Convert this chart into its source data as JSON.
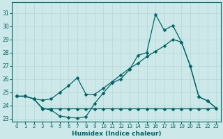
{
  "xlabel": "Humidex (Indice chaleur)",
  "bg_color": "#cce8e8",
  "line_color": "#006666",
  "grid_color": "#b8d4d4",
  "ylim": [
    22.8,
    31.8
  ],
  "yticks": [
    23,
    24,
    25,
    26,
    27,
    28,
    29,
    30,
    31
  ],
  "xticks": [
    0,
    1,
    2,
    3,
    4,
    5,
    6,
    7,
    8,
    9,
    10,
    11,
    12,
    13,
    14,
    15,
    16,
    17,
    18,
    19,
    20,
    21,
    22,
    23
  ],
  "line_jagged_x": [
    0,
    1,
    2,
    3,
    4,
    5,
    6,
    7,
    8,
    9,
    10,
    11,
    12,
    13,
    14,
    15,
    16,
    17,
    18,
    19,
    20,
    21,
    22,
    23
  ],
  "line_jagged_y": [
    24.7,
    24.7,
    24.5,
    23.8,
    23.65,
    23.2,
    23.1,
    23.05,
    23.15,
    24.15,
    24.95,
    25.7,
    26.0,
    26.7,
    27.8,
    28.0,
    30.9,
    29.7,
    30.05,
    28.8,
    27.0,
    24.65,
    24.35,
    23.8
  ],
  "line_flat_x": [
    0,
    1,
    2,
    3,
    4,
    5,
    6,
    7,
    8,
    9,
    10,
    11,
    12,
    13,
    14,
    15,
    16,
    17,
    18,
    19,
    20,
    21,
    22,
    23
  ],
  "line_flat_y": [
    24.7,
    24.7,
    24.5,
    23.75,
    23.75,
    23.75,
    23.75,
    23.75,
    23.75,
    23.75,
    23.75,
    23.75,
    23.75,
    23.75,
    23.75,
    23.75,
    23.75,
    23.75,
    23.75,
    23.75,
    23.75,
    23.75,
    23.75,
    23.8
  ],
  "line_linear_x": [
    0,
    1,
    2,
    3,
    4,
    5,
    6,
    7,
    8,
    9,
    10,
    11,
    12,
    13,
    14,
    15,
    16,
    17,
    18,
    19,
    20,
    21,
    22,
    23
  ],
  "line_linear_y": [
    24.7,
    24.7,
    24.5,
    24.4,
    24.5,
    25.0,
    25.5,
    26.1,
    24.85,
    24.85,
    25.3,
    25.8,
    26.3,
    26.8,
    27.2,
    27.7,
    28.1,
    28.5,
    29.0,
    28.8,
    27.0,
    24.65,
    24.35,
    23.8
  ]
}
